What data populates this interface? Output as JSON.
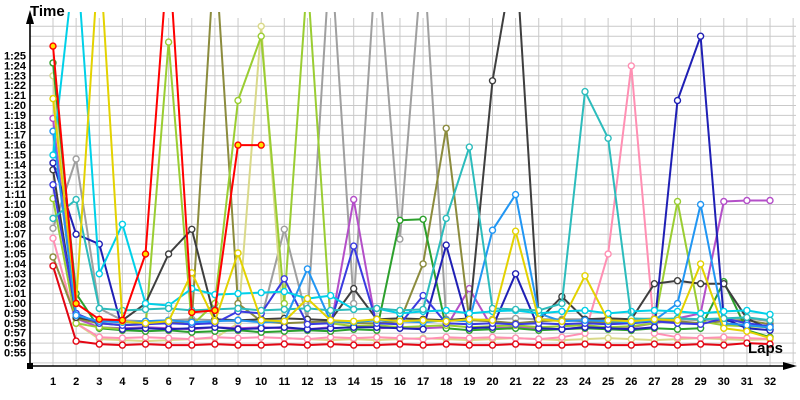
{
  "chart_data": {
    "type": "line",
    "title": "",
    "xlabel": "Laps",
    "ylabel": "Time",
    "x_ticks": [
      "1",
      "2",
      "3",
      "4",
      "5",
      "6",
      "7",
      "8",
      "9",
      "10",
      "11",
      "12",
      "13",
      "14",
      "15",
      "16",
      "17",
      "18",
      "19",
      "20",
      "21",
      "22",
      "23",
      "24",
      "25",
      "26",
      "27",
      "28",
      "29",
      "30",
      "31",
      "32"
    ],
    "y_ticks": [
      "1:25",
      "1:24",
      "1:23",
      "1:22",
      "1:21",
      "1:20",
      "1:19",
      "1:18",
      "1:17",
      "1:16",
      "1:15",
      "1:14",
      "1:13",
      "1:12",
      "1:11",
      "1:10",
      "1:09",
      "1:08",
      "1:07",
      "1:06",
      "1:05",
      "1:04",
      "1:03",
      "1:02",
      "1:01",
      "1:00",
      "0:59",
      "0:58",
      "0:57",
      "0:56",
      "0:55"
    ],
    "y_tick_seconds": [
      85,
      84,
      83,
      82,
      81,
      80,
      79,
      78,
      77,
      76,
      75,
      74,
      73,
      72,
      71,
      70,
      69,
      68,
      67,
      66,
      65,
      64,
      63,
      62,
      61,
      60,
      59,
      58,
      57,
      56,
      55
    ],
    "ylim_seconds": [
      54,
      88.5
    ],
    "grid": "on",
    "legend": "none",
    "note_offscale_seconds": 96,
    "series": [
      {
        "name": "gray",
        "color": "#9f9f9f",
        "marker_fill": "#ffffff",
        "values": [
          67.6,
          74.6,
          59.5,
          58.3,
          58.2,
          58.3,
          58.4,
          58.3,
          58.2,
          58.4,
          67.5,
          58.4,
          96,
          60,
          96,
          66.5,
          96,
          58.4,
          58.3,
          58.4,
          58.5,
          58.4,
          58.4,
          58.4,
          58.3,
          58.4,
          58.5,
          58.4,
          58.3,
          58.4,
          58.5,
          58.2
        ]
      },
      {
        "name": "khaki",
        "color": "#d9d98a",
        "marker_fill": "#fffff0",
        "values": [
          83,
          58,
          56.4,
          56.3,
          56.2,
          56.3,
          56.4,
          56.5,
          58,
          88,
          56.5,
          56.4,
          56.3,
          56.4,
          56.3,
          56.4,
          56.5,
          56.4,
          56.3,
          56.4,
          56.5,
          56.4,
          56.3,
          56.4,
          56.5,
          56.4,
          56.3,
          56.4,
          56.5,
          56.4,
          56.3,
          56.4
        ]
      },
      {
        "name": "pink",
        "color": "#ff8fb3",
        "marker_fill": "#ffffff",
        "values": [
          66.6,
          58,
          56.6,
          56.5,
          56.6,
          56.5,
          56.4,
          56.6,
          56.5,
          56.6,
          56.5,
          56.4,
          56.6,
          56.5,
          56.6,
          56.5,
          56.4,
          56.6,
          56.5,
          56.6,
          56.5,
          56.4,
          56.6,
          57,
          65,
          84,
          57,
          56.6,
          56.5,
          56.6,
          56.5,
          56.4
        ]
      },
      {
        "name": "purple",
        "color": "#b44fc8",
        "marker_fill": "#ffffff",
        "values": [
          78.7,
          58.5,
          57.6,
          57.5,
          57.6,
          57.5,
          57.4,
          57.6,
          57.5,
          57.6,
          57.5,
          57.4,
          57.6,
          70.5,
          57.5,
          57.6,
          57.5,
          57.6,
          61.5,
          57.5,
          57.6,
          57.5,
          57.4,
          57.6,
          57.5,
          57.6,
          58,
          58.5,
          59,
          70.3,
          70.4,
          70.4
        ]
      },
      {
        "name": "olive",
        "color": "#8b8b3d",
        "marker_fill": "#ffffff",
        "values": [
          64.7,
          58.5,
          58,
          57.8,
          58,
          58,
          58.2,
          96,
          60,
          58.2,
          58,
          58.1,
          58.2,
          58,
          58,
          58.2,
          64,
          77.7,
          58.3,
          58.2,
          58,
          58.2,
          58.3,
          58.2,
          58,
          58.2,
          58.3,
          58.2,
          58,
          58.2,
          58.3,
          57.9
        ]
      },
      {
        "name": "green",
        "color": "#2ca02c",
        "marker_fill": "#ffffff",
        "values": [
          84.3,
          61,
          57.5,
          57.3,
          57.2,
          57.3,
          57.1,
          57.2,
          57.3,
          57.1,
          57.2,
          57.3,
          57.2,
          57.4,
          57.3,
          68.4,
          68.5,
          57.5,
          57.3,
          57.4,
          57.5,
          57.3,
          57.4,
          57.5,
          57.4,
          57.3,
          57.5,
          57.4,
          57.5,
          62.2,
          57.3,
          56.6
        ]
      },
      {
        "name": "yellowgreen",
        "color": "#9acd32",
        "marker_fill": "#ffffff",
        "values": [
          70.6,
          58,
          57.6,
          57.4,
          57.5,
          86.4,
          57.8,
          60,
          80.5,
          87,
          60,
          93,
          58,
          57.7,
          57.8,
          57.6,
          57.7,
          57.8,
          57.6,
          57.7,
          57.8,
          57.6,
          57.7,
          57.8,
          57.6,
          57.7,
          58,
          70.3,
          58.2,
          57.8,
          57.7,
          57.6
        ]
      },
      {
        "name": "darkgray",
        "color": "#3e3e3e",
        "marker_fill": "#ffffff",
        "values": [
          73.5,
          58.6,
          58.2,
          58.3,
          60,
          65,
          67.5,
          58.4,
          58.3,
          58.4,
          58.5,
          58.4,
          58.3,
          61.5,
          58.4,
          58.5,
          58.4,
          58.3,
          58.5,
          82.5,
          96,
          58.3,
          60.7,
          58.4,
          58.5,
          58.4,
          62,
          62.3,
          62,
          62,
          58.5,
          57.4
        ]
      },
      {
        "name": "navy",
        "color": "#1f1fb4",
        "marker_fill": "#ffffff",
        "values": [
          74.2,
          67,
          66,
          57.4,
          57.5,
          57.4,
          57.5,
          57.6,
          57.4,
          57.5,
          57.6,
          57.4,
          57.5,
          57.6,
          57.6,
          57.5,
          57.4,
          65.9,
          57.5,
          57.6,
          63,
          57.5,
          57.4,
          57.6,
          57.5,
          57.4,
          57.6,
          80.5,
          87,
          58.5,
          57.5,
          57.3
        ]
      },
      {
        "name": "blue",
        "color": "#3a3ae0",
        "marker_fill": "#ffffff",
        "values": [
          72,
          59,
          58,
          57.8,
          57.9,
          58,
          57.9,
          58,
          59.2,
          59,
          62.5,
          57.9,
          58,
          65.8,
          58,
          57.9,
          60.8,
          58,
          57.9,
          58,
          57.9,
          58,
          57.9,
          58,
          57.9,
          58,
          58.2,
          58,
          57.9,
          58.5,
          58,
          57.7
        ]
      },
      {
        "name": "dodgerblue",
        "color": "#2196f3",
        "marker_fill": "#ffffff",
        "values": [
          77.4,
          58.8,
          58.2,
          58.1,
          58.2,
          58.3,
          58.1,
          58.2,
          58.3,
          58.1,
          58.2,
          63.5,
          58.2,
          58.1,
          58.3,
          58.2,
          58.1,
          58.3,
          58.2,
          67.4,
          71,
          59,
          58.2,
          58.3,
          58.2,
          58.1,
          58.3,
          60,
          70,
          58,
          57.8,
          57.6
        ]
      },
      {
        "name": "cyan",
        "color": "#00d0e8",
        "marker_fill": "#ffffff",
        "values": [
          75,
          96,
          63,
          68,
          60,
          59.8,
          61.5,
          60.9,
          61,
          61.1,
          61.2,
          60.5,
          60.8,
          59.4,
          59.5,
          59,
          59.2,
          59.3,
          59,
          59.2,
          59.3,
          59,
          59.2,
          59.3,
          59,
          59.2,
          59.3,
          59.2,
          59,
          59.2,
          59.3,
          58.9
        ]
      },
      {
        "name": "turquoise",
        "color": "#2cbcbc",
        "marker_fill": "#ffffff",
        "values": [
          68.6,
          70.5,
          59.5,
          59.3,
          59.4,
          59.5,
          59.3,
          59.4,
          59.5,
          59.3,
          59.4,
          59.5,
          59.3,
          59.4,
          59.5,
          59.3,
          59.4,
          68.6,
          75.8,
          59.5,
          59.4,
          59.3,
          60,
          81.4,
          76.7,
          58.5,
          58.4,
          58.5,
          58.4,
          58.5,
          58.6,
          58.3
        ]
      },
      {
        "name": "yellow",
        "color": "#e3d200",
        "marker_fill": "#ffffff",
        "values": [
          80.7,
          60,
          96,
          58.2,
          58,
          58.2,
          63.1,
          58.2,
          65.1,
          58.3,
          58.2,
          60.5,
          58.3,
          58.2,
          58.4,
          58.2,
          58.3,
          58.2,
          58.4,
          58.3,
          67.3,
          58.4,
          58.2,
          62.8,
          58.3,
          58.2,
          58.4,
          58.3,
          64,
          57.5,
          57.2,
          56.5
        ]
      },
      {
        "name": "red",
        "color": "#e30613",
        "marker_fill": "#ffffff",
        "values": [
          63.8,
          56.2,
          55.9,
          55.8,
          55.9,
          55.8,
          55.8,
          55.9,
          55.8,
          55.8,
          55.9,
          55.8,
          55.9,
          55.8,
          55.8,
          55.9,
          55.8,
          55.9,
          55.8,
          55.8,
          55.9,
          55.8,
          55.8,
          55.9,
          55.8,
          55.8,
          55.9,
          55.8,
          55.9,
          55.8,
          56,
          55.9
        ]
      },
      {
        "name": "red-yellow",
        "color": "#ff0000",
        "marker_fill": "#ffe000",
        "values": [
          86,
          60,
          58.4,
          58.3,
          65,
          96,
          59.1,
          59.3,
          76,
          76,
          null,
          null,
          null,
          null,
          null,
          null,
          null,
          null,
          null,
          null,
          null,
          null,
          null,
          null,
          null,
          null,
          null,
          null,
          null,
          null,
          null,
          null
        ]
      }
    ]
  },
  "axis": {
    "time_label": "Time",
    "laps_label": "Laps"
  }
}
